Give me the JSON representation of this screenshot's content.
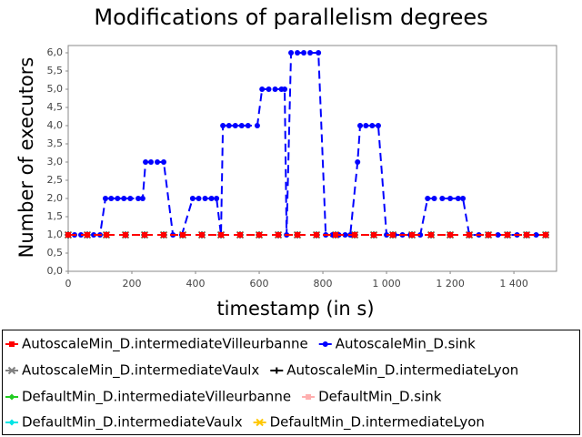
{
  "chart_data": {
    "type": "line",
    "title": "Modifications of parallelism degrees",
    "x_label": "timestamp (in s)",
    "y_label": "Number of executors",
    "xlim": [
      0,
      1534
    ],
    "ylim": [
      0,
      6.2
    ],
    "xticks": [
      0,
      200,
      400,
      600,
      800,
      {
        "value": 1000,
        "label": "1 000"
      },
      {
        "value": 1200,
        "label": "1 200"
      },
      {
        "value": 1400,
        "label": "1 400"
      }
    ],
    "yticks": [
      {
        "value": 0,
        "label": "0,0"
      },
      {
        "value": 0.5,
        "label": "0,5"
      },
      {
        "value": 1,
        "label": "1,0"
      },
      {
        "value": 1.5,
        "label": "1,5"
      },
      {
        "value": 2,
        "label": "2,0"
      },
      {
        "value": 2.5,
        "label": "2,5"
      },
      {
        "value": 3,
        "label": "3,0"
      },
      {
        "value": 3.5,
        "label": "3,5"
      },
      {
        "value": 4,
        "label": "4,0"
      },
      {
        "value": 4.5,
        "label": "4,5"
      },
      {
        "value": 5,
        "label": "5,0"
      },
      {
        "value": 5.5,
        "label": "5,5"
      },
      {
        "value": 6,
        "label": "6,0"
      }
    ],
    "grid": false,
    "x": [
      0,
      60,
      120,
      180,
      240,
      300,
      360,
      420,
      480,
      540,
      600,
      660,
      720,
      780,
      840,
      900,
      960,
      1020,
      1080,
      1140,
      1200,
      1260,
      1320,
      1380,
      1440,
      1500
    ],
    "series": [
      {
        "name": "AutoscaleMin_D.intermediateVilleurbanne",
        "color": "#ff0000",
        "marker": "square",
        "values": [
          1,
          1,
          1,
          1,
          1,
          1,
          1,
          1,
          1,
          1,
          1,
          1,
          1,
          1,
          1,
          1,
          1,
          1,
          1,
          1,
          1,
          1,
          1,
          1,
          1,
          1
        ]
      },
      {
        "name": "AutoscaleMin_D.sink",
        "color": "#0000ff",
        "marker": "circle",
        "x": [
          0,
          20,
          40,
          60,
          80,
          100,
          117,
          135,
          155,
          175,
          195,
          220,
          234,
          243,
          260,
          280,
          300,
          329,
          357,
          391,
          410,
          430,
          450,
          466,
          480,
          486,
          505,
          525,
          545,
          565,
          594,
          609,
          630,
          650,
          670,
          680,
          686,
          700,
          720,
          740,
          760,
          786,
          809,
          830,
          850,
          870,
          886,
          909,
          917,
          935,
          955,
          974,
          1000,
          1025,
          1050,
          1075,
          1106,
          1129,
          1150,
          1175,
          1200,
          1225,
          1240,
          1260,
          1290,
          1320,
          1350,
          1380,
          1410,
          1440,
          1470,
          1500
        ],
        "values": [
          1,
          1,
          1,
          1,
          1,
          1,
          2,
          2,
          2,
          2,
          2,
          2,
          2,
          3,
          3,
          3,
          3,
          1,
          1,
          2,
          2,
          2,
          2,
          2,
          1,
          4,
          4,
          4,
          4,
          4,
          4,
          5,
          5,
          5,
          5,
          5,
          1,
          6,
          6,
          6,
          6,
          6,
          1,
          1,
          1,
          1,
          1,
          3,
          4,
          4,
          4,
          4,
          1,
          1,
          1,
          1,
          1,
          2,
          2,
          2,
          2,
          2,
          2,
          1,
          1,
          1,
          1,
          1,
          1,
          1,
          1,
          1
        ]
      },
      {
        "name": "AutoscaleMin_D.intermediateVaulx",
        "color": "#808080",
        "marker": "cross",
        "values": [
          1,
          1,
          1,
          1,
          1,
          1,
          1,
          1,
          1,
          1,
          1,
          1,
          1,
          1,
          1,
          1,
          1,
          1,
          1,
          1,
          1,
          1,
          1,
          1,
          1,
          1
        ]
      },
      {
        "name": "AutoscaleMin_D.intermediateLyon",
        "color": "#000000",
        "marker": "plus",
        "values": [
          1,
          1,
          1,
          1,
          1,
          1,
          1,
          1,
          1,
          1,
          1,
          1,
          1,
          1,
          1,
          1,
          1,
          1,
          1,
          1,
          1,
          1,
          1,
          1,
          1,
          1
        ]
      },
      {
        "name": "DefaultMin_D.intermediateVilleurbanne",
        "color": "#22cc22",
        "marker": "diamond",
        "values": [
          1,
          1,
          1,
          1,
          1,
          1,
          1,
          1,
          1,
          1,
          1,
          1,
          1,
          1,
          1,
          1,
          1,
          1,
          1,
          1,
          1,
          1,
          1,
          1,
          1,
          1
        ]
      },
      {
        "name": "DefaultMin_D.sink",
        "color": "#ffafaf",
        "marker": "square",
        "values": [
          1,
          1,
          1,
          1,
          1,
          1,
          1,
          1,
          1,
          1,
          1,
          1,
          1,
          1,
          1,
          1,
          1,
          1,
          1,
          1,
          1,
          1,
          1,
          1,
          1,
          1
        ]
      },
      {
        "name": "DefaultMin_D.intermediateVaulx",
        "color": "#00e5e5",
        "marker": "diamond",
        "values": [
          1,
          1,
          1,
          1,
          1,
          1,
          1,
          1,
          1,
          1,
          1,
          1,
          1,
          1,
          1,
          1,
          1,
          1,
          1,
          1,
          1,
          1,
          1,
          1,
          1,
          1
        ]
      },
      {
        "name": "DefaultMin_D.intermediateLyon",
        "color": "#ffc800",
        "marker": "cross",
        "values": [
          1,
          1,
          1,
          1,
          1,
          1,
          1,
          1,
          1,
          1,
          1,
          1,
          1,
          1,
          1,
          1,
          1,
          1,
          1,
          1,
          1,
          1,
          1,
          1,
          1,
          1
        ]
      }
    ]
  }
}
